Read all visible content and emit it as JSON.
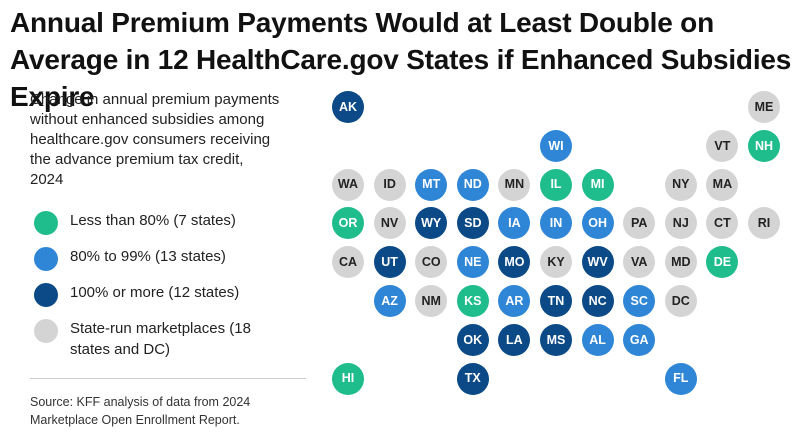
{
  "title": "Annual Premium Payments Would at Least Double on Average in 12 HealthCare.gov States if Enhanced Subsidies Expire",
  "subtitle": "Change in annual premium payments without enhanced subsidies among healthcare.gov consumers receiving the advance premium tax credit, 2024",
  "colors": {
    "green": "#1fbc8c",
    "mid_blue": "#2f86d6",
    "dark_blue": "#0b4a87",
    "gray": "#d4d4d4"
  },
  "legend": [
    {
      "key": "green",
      "label": "Less than 80% (7 states)"
    },
    {
      "key": "mid_blue",
      "label": "80% to 99% (13 states)"
    },
    {
      "key": "dark_blue",
      "label": "100% or more (12 states)"
    },
    {
      "key": "gray",
      "label": "State-run marketplaces (18 states and DC)"
    }
  ],
  "source": "Source: KFF analysis of data from 2024 Marketplace Open Enrollment Report.",
  "states": [
    {
      "abbr": "AK",
      "row": 0,
      "col": 0,
      "cat": "dark_blue"
    },
    {
      "abbr": "ME",
      "row": 0,
      "col": 10,
      "cat": "gray"
    },
    {
      "abbr": "WI",
      "row": 1,
      "col": 5,
      "cat": "mid_blue"
    },
    {
      "abbr": "VT",
      "row": 1,
      "col": 9,
      "cat": "gray"
    },
    {
      "abbr": "NH",
      "row": 1,
      "col": 10,
      "cat": "green"
    },
    {
      "abbr": "WA",
      "row": 2,
      "col": 0,
      "cat": "gray"
    },
    {
      "abbr": "ID",
      "row": 2,
      "col": 1,
      "cat": "gray"
    },
    {
      "abbr": "MT",
      "row": 2,
      "col": 2,
      "cat": "mid_blue"
    },
    {
      "abbr": "ND",
      "row": 2,
      "col": 3,
      "cat": "mid_blue"
    },
    {
      "abbr": "MN",
      "row": 2,
      "col": 4,
      "cat": "gray"
    },
    {
      "abbr": "IL",
      "row": 2,
      "col": 5,
      "cat": "green"
    },
    {
      "abbr": "MI",
      "row": 2,
      "col": 6,
      "cat": "green"
    },
    {
      "abbr": "NY",
      "row": 2,
      "col": 8,
      "cat": "gray"
    },
    {
      "abbr": "MA",
      "row": 2,
      "col": 9,
      "cat": "gray"
    },
    {
      "abbr": "OR",
      "row": 3,
      "col": 0,
      "cat": "green"
    },
    {
      "abbr": "NV",
      "row": 3,
      "col": 1,
      "cat": "gray"
    },
    {
      "abbr": "WY",
      "row": 3,
      "col": 2,
      "cat": "dark_blue"
    },
    {
      "abbr": "SD",
      "row": 3,
      "col": 3,
      "cat": "dark_blue"
    },
    {
      "abbr": "IA",
      "row": 3,
      "col": 4,
      "cat": "mid_blue"
    },
    {
      "abbr": "IN",
      "row": 3,
      "col": 5,
      "cat": "mid_blue"
    },
    {
      "abbr": "OH",
      "row": 3,
      "col": 6,
      "cat": "mid_blue"
    },
    {
      "abbr": "PA",
      "row": 3,
      "col": 7,
      "cat": "gray"
    },
    {
      "abbr": "NJ",
      "row": 3,
      "col": 8,
      "cat": "gray"
    },
    {
      "abbr": "CT",
      "row": 3,
      "col": 9,
      "cat": "gray"
    },
    {
      "abbr": "RI",
      "row": 3,
      "col": 10,
      "cat": "gray"
    },
    {
      "abbr": "CA",
      "row": 4,
      "col": 0,
      "cat": "gray"
    },
    {
      "abbr": "UT",
      "row": 4,
      "col": 1,
      "cat": "dark_blue"
    },
    {
      "abbr": "CO",
      "row": 4,
      "col": 2,
      "cat": "gray"
    },
    {
      "abbr": "NE",
      "row": 4,
      "col": 3,
      "cat": "mid_blue"
    },
    {
      "abbr": "MO",
      "row": 4,
      "col": 4,
      "cat": "dark_blue"
    },
    {
      "abbr": "KY",
      "row": 4,
      "col": 5,
      "cat": "gray"
    },
    {
      "abbr": "WV",
      "row": 4,
      "col": 6,
      "cat": "dark_blue"
    },
    {
      "abbr": "VA",
      "row": 4,
      "col": 7,
      "cat": "gray"
    },
    {
      "abbr": "MD",
      "row": 4,
      "col": 8,
      "cat": "gray"
    },
    {
      "abbr": "DE",
      "row": 4,
      "col": 9,
      "cat": "green"
    },
    {
      "abbr": "AZ",
      "row": 5,
      "col": 1,
      "cat": "mid_blue"
    },
    {
      "abbr": "NM",
      "row": 5,
      "col": 2,
      "cat": "gray"
    },
    {
      "abbr": "KS",
      "row": 5,
      "col": 3,
      "cat": "green"
    },
    {
      "abbr": "AR",
      "row": 5,
      "col": 4,
      "cat": "mid_blue"
    },
    {
      "abbr": "TN",
      "row": 5,
      "col": 5,
      "cat": "dark_blue"
    },
    {
      "abbr": "NC",
      "row": 5,
      "col": 6,
      "cat": "dark_blue"
    },
    {
      "abbr": "SC",
      "row": 5,
      "col": 7,
      "cat": "mid_blue"
    },
    {
      "abbr": "DC",
      "row": 5,
      "col": 8,
      "cat": "gray"
    },
    {
      "abbr": "OK",
      "row": 6,
      "col": 3,
      "cat": "dark_blue"
    },
    {
      "abbr": "LA",
      "row": 6,
      "col": 4,
      "cat": "dark_blue"
    },
    {
      "abbr": "MS",
      "row": 6,
      "col": 5,
      "cat": "dark_blue"
    },
    {
      "abbr": "AL",
      "row": 6,
      "col": 6,
      "cat": "mid_blue"
    },
    {
      "abbr": "GA",
      "row": 6,
      "col": 7,
      "cat": "mid_blue"
    },
    {
      "abbr": "HI",
      "row": 7,
      "col": 0,
      "cat": "green"
    },
    {
      "abbr": "TX",
      "row": 7,
      "col": 3,
      "cat": "dark_blue"
    },
    {
      "abbr": "FL",
      "row": 7,
      "col": 8,
      "cat": "mid_blue"
    }
  ]
}
